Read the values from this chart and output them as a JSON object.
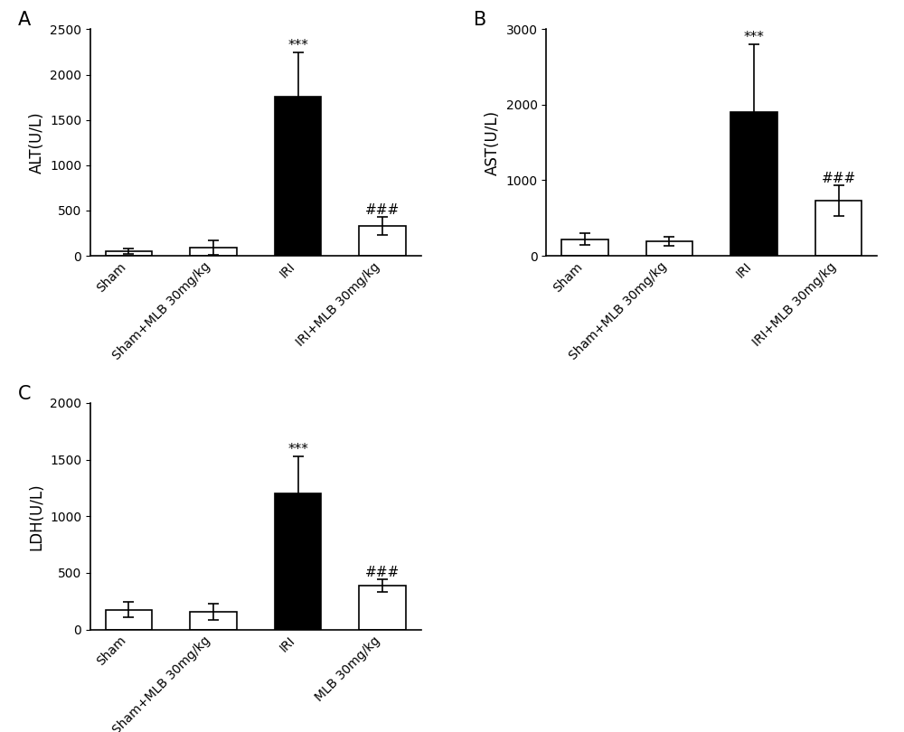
{
  "panels": [
    {
      "label": "A",
      "ylabel": "ALT(U/L)",
      "ylim": [
        0,
        2500
      ],
      "yticks": [
        0,
        500,
        1000,
        1500,
        2000,
        2500
      ],
      "categories": [
        "Sham",
        "Sham+MLB 30mg/kg",
        "IRI",
        "IRI+MLB 30mg/kg"
      ],
      "values": [
        55,
        90,
        1760,
        330
      ],
      "errors": [
        30,
        80,
        480,
        100
      ],
      "colors": [
        "white",
        "white",
        "black",
        "white"
      ],
      "sig_above": [
        null,
        null,
        "***",
        "###"
      ],
      "sig_positions": [
        null,
        null,
        2240,
        430
      ]
    },
    {
      "label": "B",
      "ylabel": "AST(U/L)",
      "ylim": [
        0,
        3000
      ],
      "yticks": [
        0,
        1000,
        2000,
        3000
      ],
      "categories": [
        "Sham",
        "Sham+MLB 30mg/kg",
        "IRI",
        "IRI+MLB 30mg/kg"
      ],
      "values": [
        220,
        190,
        1900,
        730
      ],
      "errors": [
        80,
        60,
        900,
        200
      ],
      "colors": [
        "white",
        "white",
        "black",
        "white"
      ],
      "sig_above": [
        null,
        null,
        "***",
        "###"
      ],
      "sig_positions": [
        null,
        null,
        2800,
        930
      ]
    },
    {
      "label": "C",
      "ylabel": "LDH(U/L)",
      "ylim": [
        0,
        2000
      ],
      "yticks": [
        0,
        500,
        1000,
        1500,
        2000
      ],
      "categories": [
        "Sham",
        "Sham+MLB 30mg/kg",
        "IRI",
        "MLB 30mg/kg"
      ],
      "values": [
        175,
        155,
        1200,
        390
      ],
      "errors": [
        70,
        70,
        330,
        55
      ],
      "colors": [
        "white",
        "white",
        "black",
        "white"
      ],
      "sig_above": [
        null,
        null,
        "***",
        "###"
      ],
      "sig_positions": [
        null,
        null,
        1530,
        445
      ]
    }
  ],
  "bar_width": 0.55,
  "bar_edgecolor": "black",
  "background_color": "white",
  "tick_fontsize": 10,
  "label_fontsize": 12,
  "panel_label_fontsize": 15,
  "sig_fontsize": 11,
  "xlabel_rotation": 45,
  "xlabel_ha": "right"
}
